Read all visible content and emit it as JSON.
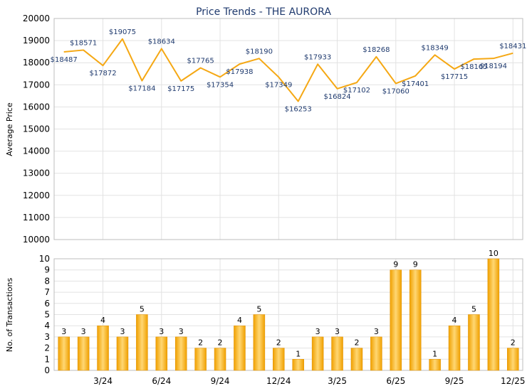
{
  "chart_data": [
    {
      "type": "line",
      "title": "Price Trends - THE AURORA",
      "ylabel": "Average Price",
      "ylim": [
        10000,
        20000
      ],
      "yticks": [
        10000,
        11000,
        12000,
        13000,
        14000,
        15000,
        16000,
        17000,
        18000,
        19000,
        20000
      ],
      "grid": true,
      "color": "#f5a814",
      "series": [
        {
          "values": [
            18487,
            18571,
            17872,
            19075,
            17184,
            18634,
            17175,
            17765,
            17354,
            17938,
            18190,
            17349,
            16253,
            17933,
            16824,
            17102,
            18268,
            17060,
            17401,
            18349,
            17715,
            18165,
            18194,
            18431
          ],
          "labels": [
            "$18487",
            "$18571",
            "$17872",
            "$19075",
            "$17184",
            "$18634",
            "$17175",
            "$17765",
            "$17354",
            "$17938",
            "$18190",
            "$17349",
            "$16253",
            "$17933",
            "$16824",
            "$17102",
            "$18268",
            "$17060",
            "$17401",
            "$18349",
            "$17715",
            "$18165",
            "$18194",
            "$18431"
          ]
        }
      ]
    },
    {
      "type": "bar",
      "ylabel": "No. of Transactions",
      "ylim": [
        0,
        10
      ],
      "yticks": [
        0,
        1,
        2,
        3,
        4,
        5,
        6,
        7,
        8,
        9,
        10
      ],
      "grid": true,
      "color": "#f5a814",
      "x_tick_labels": [
        "3/24",
        "6/24",
        "9/24",
        "12/24",
        "3/25",
        "6/25",
        "9/25",
        "12/25"
      ],
      "values": [
        3,
        3,
        4,
        3,
        5,
        3,
        3,
        2,
        2,
        4,
        5,
        2,
        1,
        3,
        3,
        2,
        3,
        9,
        9,
        1,
        4,
        5,
        10,
        2
      ]
    }
  ]
}
